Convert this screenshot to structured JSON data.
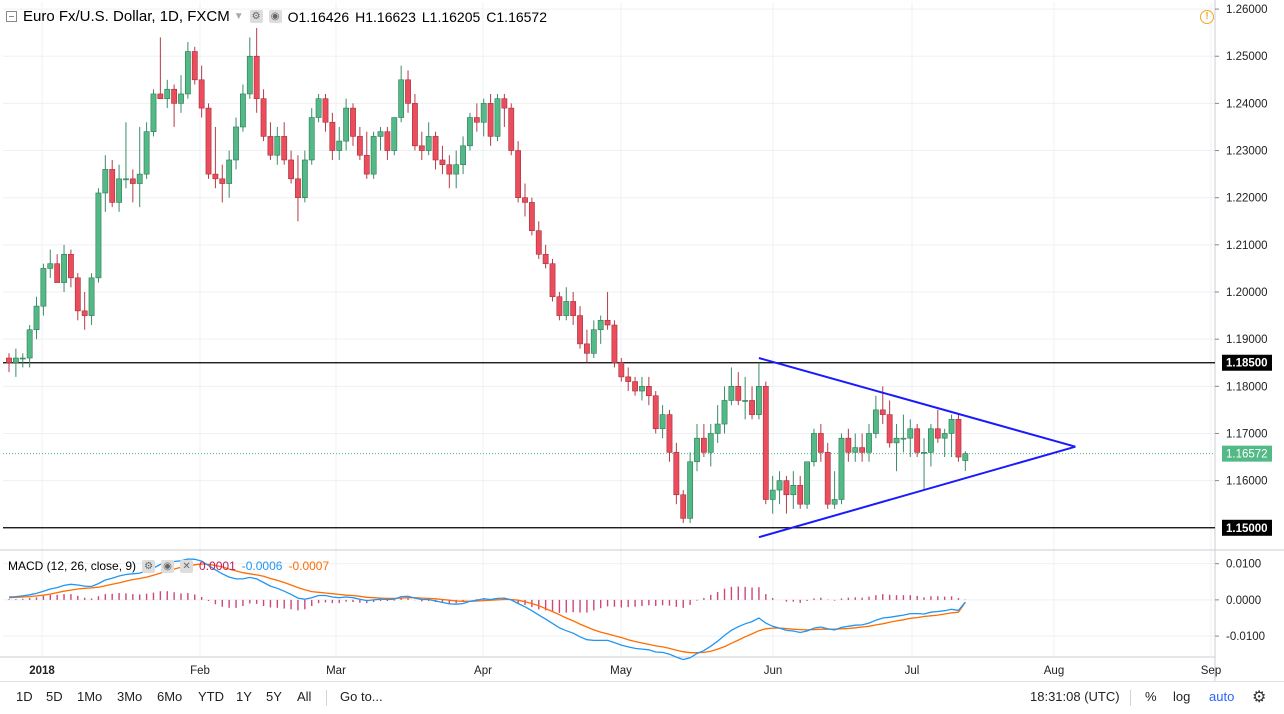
{
  "header": {
    "symbol_title": "Euro Fx/U.S. Dollar, 1D, FXCM",
    "ohlc": [
      {
        "label": "O",
        "value": "1.16426"
      },
      {
        "label": "H",
        "value": "1.16623"
      },
      {
        "label": "L",
        "value": "1.16205"
      },
      {
        "label": "C",
        "value": "1.16572"
      }
    ]
  },
  "macd_header": {
    "title": "MACD (12, 26, close, 9)",
    "hist_value": "0.0001",
    "macd_value": "-0.0006",
    "signal_value": "-0.0007"
  },
  "colors": {
    "up": "#53b987",
    "down": "#eb4d5c",
    "trendline": "#1a1aff",
    "macd_line": "#2196f3",
    "signal_line": "#ff6d00",
    "hist": "#c2185b",
    "last_price_bg": "#53b987"
  },
  "chart_data": {
    "type": "candlestick",
    "title": "Euro Fx/U.S. Dollar, 1D, FXCM",
    "x_labels": [
      "2018",
      "Feb",
      "Mar",
      "Apr",
      "May",
      "Jun",
      "Jul",
      "Aug",
      "Sep"
    ],
    "price_ticks": [
      "1.26000",
      "1.25000",
      "1.24000",
      "1.23000",
      "1.22000",
      "1.21000",
      "1.20000",
      "1.19000",
      "1.18000",
      "1.17000",
      "1.16000"
    ],
    "price_range": [
      1.1455,
      1.2615
    ],
    "horizontal_levels": [
      {
        "value": 1.185,
        "label": "1.18500"
      },
      {
        "value": 1.15,
        "label": "1.15000"
      }
    ],
    "last_price": {
      "value": 1.16572,
      "label": "1.16572"
    },
    "macd_ticks": [
      "0.0100",
      "0.0000",
      "-0.0100"
    ],
    "macd_range": [
      -0.0155,
      0.0135
    ],
    "candles": [
      [
        1.186,
        1.187,
        1.183,
        1.185
      ],
      [
        1.185,
        1.188,
        1.182,
        1.186
      ],
      [
        1.186,
        1.187,
        1.184,
        1.186
      ],
      [
        1.186,
        1.193,
        1.184,
        1.192
      ],
      [
        1.192,
        1.199,
        1.19,
        1.197
      ],
      [
        1.197,
        1.206,
        1.195,
        1.205
      ],
      [
        1.205,
        1.209,
        1.203,
        1.206
      ],
      [
        1.206,
        1.208,
        1.202,
        1.202
      ],
      [
        1.202,
        1.21,
        1.2,
        1.208
      ],
      [
        1.208,
        1.209,
        1.201,
        1.203
      ],
      [
        1.203,
        1.204,
        1.194,
        1.196
      ],
      [
        1.196,
        1.2,
        1.192,
        1.195
      ],
      [
        1.195,
        1.204,
        1.193,
        1.203
      ],
      [
        1.203,
        1.222,
        1.202,
        1.221
      ],
      [
        1.221,
        1.229,
        1.217,
        1.226
      ],
      [
        1.226,
        1.228,
        1.218,
        1.219
      ],
      [
        1.219,
        1.227,
        1.217,
        1.224
      ],
      [
        1.224,
        1.236,
        1.222,
        1.224
      ],
      [
        1.224,
        1.226,
        1.219,
        1.223
      ],
      [
        1.223,
        1.235,
        1.218,
        1.225
      ],
      [
        1.225,
        1.236,
        1.224,
        1.234
      ],
      [
        1.234,
        1.243,
        1.233,
        1.242
      ],
      [
        1.242,
        1.254,
        1.241,
        1.241
      ],
      [
        1.241,
        1.245,
        1.239,
        1.243
      ],
      [
        1.243,
        1.244,
        1.235,
        1.24
      ],
      [
        1.24,
        1.246,
        1.238,
        1.242
      ],
      [
        1.242,
        1.253,
        1.241,
        1.251
      ],
      [
        1.251,
        1.252,
        1.244,
        1.245
      ],
      [
        1.245,
        1.248,
        1.237,
        1.239
      ],
      [
        1.239,
        1.24,
        1.224,
        1.225
      ],
      [
        1.225,
        1.235,
        1.222,
        1.224
      ],
      [
        1.224,
        1.227,
        1.219,
        1.223
      ],
      [
        1.223,
        1.23,
        1.22,
        1.228
      ],
      [
        1.228,
        1.237,
        1.226,
        1.235
      ],
      [
        1.235,
        1.244,
        1.234,
        1.242
      ],
      [
        1.242,
        1.254,
        1.241,
        1.25
      ],
      [
        1.25,
        1.256,
        1.238,
        1.241
      ],
      [
        1.241,
        1.243,
        1.232,
        1.233
      ],
      [
        1.233,
        1.236,
        1.228,
        1.229
      ],
      [
        1.229,
        1.235,
        1.227,
        1.233
      ],
      [
        1.233,
        1.236,
        1.227,
        1.228
      ],
      [
        1.228,
        1.23,
        1.223,
        1.224
      ],
      [
        1.224,
        1.229,
        1.215,
        1.22
      ],
      [
        1.22,
        1.23,
        1.219,
        1.228
      ],
      [
        1.228,
        1.239,
        1.227,
        1.237
      ],
      [
        1.237,
        1.242,
        1.236,
        1.241
      ],
      [
        1.241,
        1.242,
        1.234,
        1.236
      ],
      [
        1.236,
        1.238,
        1.228,
        1.23
      ],
      [
        1.23,
        1.235,
        1.228,
        1.232
      ],
      [
        1.232,
        1.241,
        1.23,
        1.239
      ],
      [
        1.239,
        1.24,
        1.231,
        1.233
      ],
      [
        1.233,
        1.235,
        1.228,
        1.229
      ],
      [
        1.229,
        1.234,
        1.224,
        1.225
      ],
      [
        1.225,
        1.234,
        1.224,
        1.233
      ],
      [
        1.233,
        1.235,
        1.23,
        1.234
      ],
      [
        1.234,
        1.235,
        1.228,
        1.23
      ],
      [
        1.23,
        1.237,
        1.229,
        1.237
      ],
      [
        1.237,
        1.248,
        1.236,
        1.245
      ],
      [
        1.245,
        1.247,
        1.238,
        1.24
      ],
      [
        1.24,
        1.242,
        1.23,
        1.231
      ],
      [
        1.231,
        1.234,
        1.228,
        1.23
      ],
      [
        1.23,
        1.236,
        1.229,
        1.233
      ],
      [
        1.233,
        1.234,
        1.226,
        1.228
      ],
      [
        1.228,
        1.231,
        1.225,
        1.227
      ],
      [
        1.227,
        1.229,
        1.222,
        1.225
      ],
      [
        1.225,
        1.23,
        1.222,
        1.227
      ],
      [
        1.227,
        1.233,
        1.225,
        1.231
      ],
      [
        1.231,
        1.238,
        1.23,
        1.237
      ],
      [
        1.237,
        1.24,
        1.234,
        1.236
      ],
      [
        1.236,
        1.241,
        1.233,
        1.24
      ],
      [
        1.24,
        1.242,
        1.231,
        1.233
      ],
      [
        1.233,
        1.242,
        1.232,
        1.241
      ],
      [
        1.241,
        1.242,
        1.235,
        1.239
      ],
      [
        1.239,
        1.24,
        1.229,
        1.23
      ],
      [
        1.23,
        1.232,
        1.219,
        1.22
      ],
      [
        1.22,
        1.223,
        1.216,
        1.219
      ],
      [
        1.219,
        1.22,
        1.212,
        1.213
      ],
      [
        1.213,
        1.215,
        1.207,
        1.208
      ],
      [
        1.208,
        1.21,
        1.205,
        1.206
      ],
      [
        1.206,
        1.207,
        1.198,
        1.199
      ],
      [
        1.199,
        1.2,
        1.194,
        1.195
      ],
      [
        1.195,
        1.201,
        1.194,
        1.198
      ],
      [
        1.198,
        1.2,
        1.193,
        1.195
      ],
      [
        1.195,
        1.197,
        1.188,
        1.189
      ],
      [
        1.189,
        1.192,
        1.185,
        1.187
      ],
      [
        1.187,
        1.194,
        1.186,
        1.192
      ],
      [
        1.192,
        1.195,
        1.189,
        1.194
      ],
      [
        1.194,
        1.2,
        1.192,
        1.193
      ],
      [
        1.193,
        1.194,
        1.184,
        1.185
      ],
      [
        1.185,
        1.186,
        1.181,
        1.182
      ],
      [
        1.182,
        1.184,
        1.179,
        1.181
      ],
      [
        1.181,
        1.182,
        1.178,
        1.179
      ],
      [
        1.179,
        1.182,
        1.177,
        1.18
      ],
      [
        1.18,
        1.182,
        1.176,
        1.178
      ],
      [
        1.178,
        1.179,
        1.17,
        1.171
      ],
      [
        1.171,
        1.176,
        1.169,
        1.174
      ],
      [
        1.174,
        1.175,
        1.164,
        1.166
      ],
      [
        1.166,
        1.168,
        1.155,
        1.157
      ],
      [
        1.157,
        1.158,
        1.151,
        1.152
      ],
      [
        1.152,
        1.166,
        1.151,
        1.164
      ],
      [
        1.164,
        1.172,
        1.162,
        1.169
      ],
      [
        1.169,
        1.172,
        1.165,
        1.166
      ],
      [
        1.166,
        1.172,
        1.163,
        1.17
      ],
      [
        1.17,
        1.176,
        1.168,
        1.172
      ],
      [
        1.172,
        1.18,
        1.17,
        1.177
      ],
      [
        1.177,
        1.184,
        1.176,
        1.18
      ],
      [
        1.18,
        1.183,
        1.176,
        1.177
      ],
      [
        1.177,
        1.182,
        1.173,
        1.177
      ],
      [
        1.177,
        1.18,
        1.173,
        1.174
      ],
      [
        1.174,
        1.185,
        1.173,
        1.18
      ],
      [
        1.18,
        1.181,
        1.155,
        1.156
      ],
      [
        1.156,
        1.161,
        1.153,
        1.158
      ],
      [
        1.158,
        1.162,
        1.155,
        1.16
      ],
      [
        1.16,
        1.161,
        1.153,
        1.157
      ],
      [
        1.157,
        1.162,
        1.154,
        1.159
      ],
      [
        1.159,
        1.161,
        1.154,
        1.155
      ],
      [
        1.155,
        1.164,
        1.154,
        1.164
      ],
      [
        1.164,
        1.171,
        1.163,
        1.17
      ],
      [
        1.17,
        1.172,
        1.164,
        1.166
      ],
      [
        1.166,
        1.168,
        1.154,
        1.155
      ],
      [
        1.155,
        1.162,
        1.154,
        1.156
      ],
      [
        1.156,
        1.17,
        1.155,
        1.169
      ],
      [
        1.169,
        1.171,
        1.164,
        1.166
      ],
      [
        1.166,
        1.17,
        1.164,
        1.167
      ],
      [
        1.167,
        1.17,
        1.164,
        1.166
      ],
      [
        1.166,
        1.172,
        1.164,
        1.17
      ],
      [
        1.17,
        1.178,
        1.169,
        1.175
      ],
      [
        1.175,
        1.18,
        1.172,
        1.174
      ],
      [
        1.174,
        1.177,
        1.167,
        1.168
      ],
      [
        1.168,
        1.172,
        1.162,
        1.169
      ],
      [
        1.169,
        1.174,
        1.166,
        1.169
      ],
      [
        1.169,
        1.173,
        1.165,
        1.171
      ],
      [
        1.171,
        1.172,
        1.165,
        1.166
      ],
      [
        1.166,
        1.169,
        1.158,
        1.166
      ],
      [
        1.166,
        1.172,
        1.163,
        1.171
      ],
      [
        1.171,
        1.175,
        1.168,
        1.169
      ],
      [
        1.169,
        1.171,
        1.165,
        1.17
      ],
      [
        1.17,
        1.174,
        1.165,
        1.173
      ],
      [
        1.173,
        1.174,
        1.164,
        1.165
      ],
      [
        1.16426,
        1.16623,
        1.16205,
        1.16572
      ]
    ],
    "triangle": {
      "upper": {
        "from": {
          "index": 109,
          "value": 1.186
        },
        "to": {
          "index": 155,
          "value": 1.1672
        }
      },
      "lower": {
        "from": {
          "index": 109,
          "value": 1.148
        },
        "to": {
          "index": 155,
          "value": 1.1672
        }
      }
    },
    "macd": [
      0.0008,
      0.0009,
      0.0011,
      0.0014,
      0.0018,
      0.0024,
      0.003,
      0.0034,
      0.004,
      0.0043,
      0.0041,
      0.0038,
      0.0037,
      0.0045,
      0.0055,
      0.006,
      0.0066,
      0.007,
      0.0072,
      0.0074,
      0.008,
      0.0088,
      0.0098,
      0.0104,
      0.0106,
      0.0108,
      0.0113,
      0.0112,
      0.0107,
      0.0095,
      0.0083,
      0.0072,
      0.0063,
      0.0058,
      0.0058,
      0.0062,
      0.0058,
      0.0048,
      0.0038,
      0.0032,
      0.0024,
      0.0015,
      0.0005,
      0.0002,
      0.0006,
      0.0012,
      0.0012,
      0.0008,
      0.0006,
      0.0008,
      0.0006,
      0.0002,
      -0.0002,
      0.0,
      0.0002,
      0.0001,
      0.0002,
      0.0009,
      0.001,
      0.0005,
      0.0001,
      0.0001,
      -0.0003,
      -0.0007,
      -0.0011,
      -0.0012,
      -0.001,
      -0.0004,
      -0.0001,
      0.0003,
      0.0001,
      0.0004,
      0.0005,
      0.0,
      -0.001,
      -0.0019,
      -0.003,
      -0.0042,
      -0.0053,
      -0.0065,
      -0.0077,
      -0.0085,
      -0.0092,
      -0.0102,
      -0.011,
      -0.0112,
      -0.0112,
      -0.0112,
      -0.0118,
      -0.0125,
      -0.013,
      -0.0134,
      -0.0136,
      -0.0138,
      -0.0144,
      -0.0145,
      -0.015,
      -0.0158,
      -0.0165,
      -0.016,
      -0.0148,
      -0.014,
      -0.0128,
      -0.0114,
      -0.0098,
      -0.0084,
      -0.0074,
      -0.0066,
      -0.006,
      -0.005,
      -0.0064,
      -0.0073,
      -0.0078,
      -0.0084,
      -0.0086,
      -0.009,
      -0.0086,
      -0.0078,
      -0.0075,
      -0.008,
      -0.0083,
      -0.0076,
      -0.0073,
      -0.007,
      -0.0069,
      -0.0064,
      -0.0056,
      -0.005,
      -0.0048,
      -0.0045,
      -0.0042,
      -0.0038,
      -0.0038,
      -0.0039,
      -0.0034,
      -0.0032,
      -0.003,
      -0.0026,
      -0.0029,
      -0.0006
    ],
    "signal": [
      0.0006,
      0.0007,
      0.0008,
      0.0009,
      0.0011,
      0.0013,
      0.0016,
      0.002,
      0.0024,
      0.0027,
      0.003,
      0.0032,
      0.0033,
      0.0035,
      0.0039,
      0.0043,
      0.0047,
      0.0052,
      0.0056,
      0.0059,
      0.0063,
      0.0068,
      0.0074,
      0.008,
      0.0085,
      0.009,
      0.0094,
      0.0097,
      0.0099,
      0.0098,
      0.0095,
      0.0091,
      0.0085,
      0.008,
      0.0075,
      0.0072,
      0.0069,
      0.0065,
      0.0059,
      0.0054,
      0.0048,
      0.0041,
      0.0034,
      0.0028,
      0.0023,
      0.0021,
      0.0019,
      0.0017,
      0.0015,
      0.0013,
      0.0012,
      0.001,
      0.0007,
      0.0006,
      0.0005,
      0.0004,
      0.0004,
      0.0005,
      0.0006,
      0.0006,
      0.0005,
      0.0004,
      0.0003,
      0.0001,
      -0.0001,
      -0.0003,
      -0.0004,
      -0.0004,
      -0.0003,
      -0.0002,
      -0.0001,
      0.0,
      0.0001,
      0.0001,
      -0.0001,
      -0.0005,
      -0.001,
      -0.0016,
      -0.0024,
      -0.0032,
      -0.0041,
      -0.005,
      -0.0058,
      -0.0067,
      -0.0075,
      -0.0083,
      -0.0089,
      -0.0094,
      -0.0099,
      -0.0104,
      -0.011,
      -0.0115,
      -0.0119,
      -0.0123,
      -0.0127,
      -0.013,
      -0.0134,
      -0.0139,
      -0.0143,
      -0.0146,
      -0.0146,
      -0.0145,
      -0.0142,
      -0.0136,
      -0.0129,
      -0.012,
      -0.0111,
      -0.0102,
      -0.0094,
      -0.0085,
      -0.008,
      -0.0078,
      -0.0078,
      -0.0079,
      -0.0081,
      -0.0082,
      -0.0083,
      -0.0082,
      -0.0081,
      -0.0081,
      -0.0081,
      -0.008,
      -0.0079,
      -0.0077,
      -0.0075,
      -0.0073,
      -0.0069,
      -0.0066,
      -0.0062,
      -0.0058,
      -0.0055,
      -0.0051,
      -0.0049,
      -0.0046,
      -0.0044,
      -0.0042,
      -0.0039,
      -0.0036,
      -0.0034,
      -0.0007
    ]
  },
  "bottom_bar": {
    "ranges": [
      "1D",
      "5D",
      "1Mo",
      "3Mo",
      "6Mo",
      "YTD",
      "1Y",
      "5Y",
      "All"
    ],
    "goto": "Go to...",
    "time": "18:31:08 (UTC)",
    "percent": "%",
    "log": "log",
    "auto": "auto"
  }
}
